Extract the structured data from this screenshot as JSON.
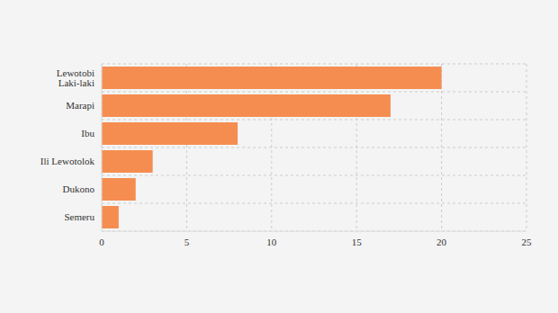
{
  "chart_data": {
    "type": "bar",
    "orientation": "horizontal",
    "categories": [
      "Lewotobi Laki-laki",
      "Marapi",
      "Ibu",
      "Ili Lewotolok",
      "Dukono",
      "Semeru"
    ],
    "values": [
      20,
      17,
      8,
      3,
      2,
      1
    ],
    "color": "#f58d51",
    "xlim": [
      0,
      25
    ],
    "xticks": [
      0,
      5,
      10,
      15,
      20,
      25
    ],
    "grid": true
  }
}
